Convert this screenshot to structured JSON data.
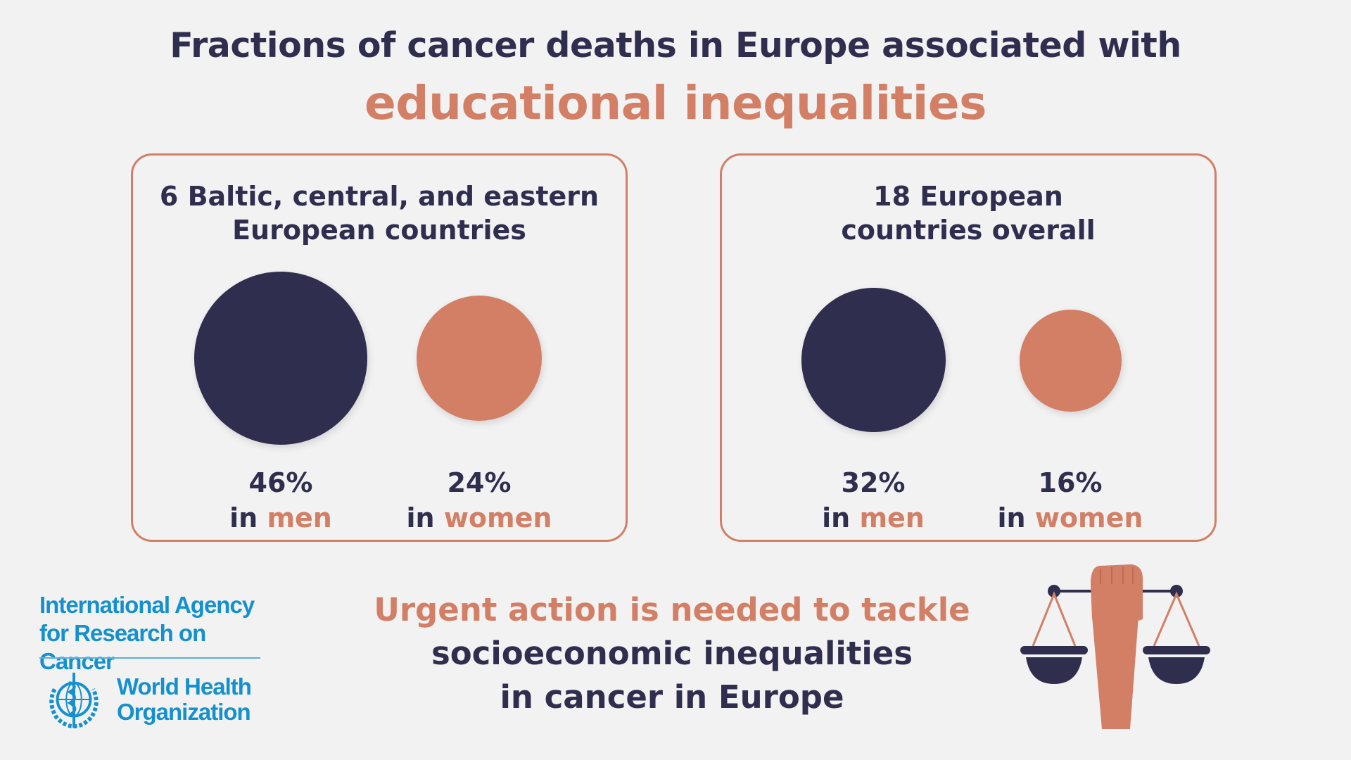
{
  "title": {
    "line1": "Fractions of cancer deaths in Europe associated with",
    "line2": "educational inequalities"
  },
  "panels": [
    {
      "title_line1": "6 Baltic, central, and eastern",
      "title_line2": "European countries",
      "men": {
        "value": "46%",
        "prefix": "in",
        "label": "men"
      },
      "women": {
        "value": "24%",
        "prefix": "in",
        "label": "women"
      }
    },
    {
      "title_line1": "18 European",
      "title_line2": "countries overall",
      "men": {
        "value": "32%",
        "prefix": "in",
        "label": "men"
      },
      "women": {
        "value": "16%",
        "prefix": "in",
        "label": "women"
      }
    }
  ],
  "cta": {
    "line1": "Urgent action is needed to tackle",
    "line2": "socioeconomic inequalities",
    "line3": "in cancer in Europe"
  },
  "logos": {
    "iarc_line1": "International Agency",
    "iarc_line2": "for Research on Cancer",
    "who_line1": "World Health",
    "who_line2": "Organization"
  },
  "icons": [
    "who-emblem-icon",
    "justice-scales-icon"
  ],
  "colors": {
    "navy": "#302e4f",
    "accent": "#d27f65",
    "who_blue": "#1590cf",
    "background": "#f2f2f2"
  }
}
